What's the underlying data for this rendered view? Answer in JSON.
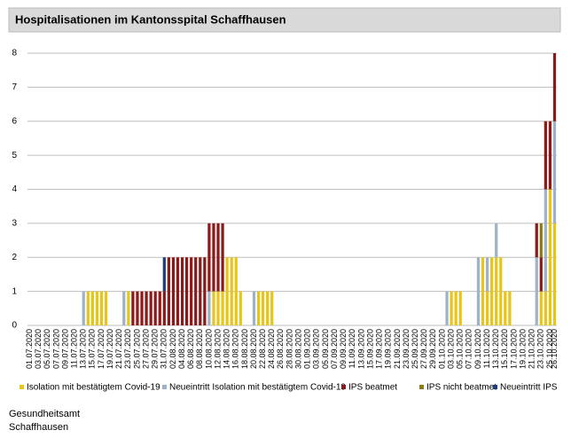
{
  "chart_data": {
    "type": "stacked_bar",
    "title": "Hospitalisationen im Kantonsspital Schaffhausen",
    "categories": [
      "01.07.2020",
      null,
      "03.07.2020",
      null,
      "05.07.2020",
      null,
      "07.07.2020",
      null,
      "09.07.2020",
      null,
      "11.07.2020",
      null,
      "13.07.2020",
      null,
      "15.07.2020",
      null,
      "17.07.2020",
      null,
      "19.07.2020",
      null,
      "21.07.2020",
      null,
      "23.07.2020",
      null,
      "25.07.2020",
      null,
      "27.07.2020",
      null,
      "29.07.2020",
      null,
      "31.07.2020",
      null,
      "02.08.2020",
      null,
      "04.08.2020",
      null,
      "06.08.2020",
      null,
      "08.08.2020",
      null,
      "10.08.2020",
      null,
      "12.08.2020",
      null,
      "14.08.2020",
      null,
      "16.08.2020",
      null,
      "18.08.2020",
      null,
      "20.08.2020",
      null,
      "22.08.2020",
      null,
      "24.08.2020",
      null,
      "26.08.2020",
      null,
      "28.08.2020",
      null,
      "30.08.2020",
      null,
      "01.09.2020",
      null,
      "03.09.2020",
      null,
      "05.09.2020",
      null,
      "07.09.2020",
      null,
      "09.09.2020",
      null,
      "11.09.2020",
      null,
      "13.09.2020",
      null,
      "15.09.2020",
      null,
      "17.09.2020",
      null,
      "19.09.2020",
      null,
      "21.09.2020",
      null,
      "23.09.2020",
      null,
      "25.09.2020",
      null,
      "27.09.2020",
      null,
      "29.09.2020",
      null,
      "01.10.2020",
      null,
      "03.10.2020",
      null,
      "05.10.2020",
      null,
      "07.10.2020",
      null,
      "09.10.2020",
      null,
      "11.10.2020",
      null,
      "13.10.2020",
      null,
      "15.10.2020",
      null,
      "17.10.2020",
      null,
      "19.10.2020",
      null,
      "21.10.2020",
      null,
      "23.10.2020",
      null,
      "25.10.2020",
      "26.10.2020"
    ],
    "series": [
      {
        "name": "Isolation mit bestätigtem Covid-19",
        "color": "#e8c619",
        "values": [
          0,
          0,
          0,
          0,
          0,
          0,
          0,
          0,
          0,
          0,
          0,
          0,
          0,
          1,
          1,
          1,
          1,
          1,
          0,
          0,
          0,
          0,
          1,
          0,
          0,
          0,
          0,
          0,
          0,
          0,
          0,
          0,
          0,
          0,
          0,
          0,
          0,
          0,
          0,
          0,
          0,
          1,
          1,
          1,
          2,
          2,
          2,
          1,
          0,
          0,
          0,
          1,
          1,
          1,
          1,
          0,
          0,
          0,
          0,
          0,
          0,
          0,
          0,
          0,
          0,
          0,
          0,
          0,
          0,
          0,
          0,
          0,
          0,
          0,
          0,
          0,
          0,
          0,
          0,
          0,
          0,
          0,
          0,
          0,
          0,
          0,
          0,
          0,
          0,
          0,
          0,
          0,
          0,
          0,
          1,
          1,
          1,
          0,
          0,
          0,
          0,
          2,
          1,
          2,
          2,
          2,
          1,
          1,
          0,
          0,
          0,
          0,
          0,
          0,
          1,
          1,
          4,
          3
        ]
      },
      {
        "name": "Neueintritt Isolation mit bestätigtem Covid-19",
        "color": "#9fb3c8",
        "values": [
          0,
          0,
          0,
          0,
          0,
          0,
          0,
          0,
          0,
          0,
          0,
          0,
          1,
          0,
          0,
          0,
          0,
          0,
          0,
          0,
          0,
          1,
          0,
          0,
          0,
          0,
          0,
          0,
          0,
          0,
          0,
          0,
          0,
          0,
          0,
          0,
          0,
          0,
          0,
          0,
          1,
          0,
          0,
          0,
          0,
          0,
          0,
          0,
          0,
          0,
          1,
          0,
          0,
          0,
          0,
          0,
          0,
          0,
          0,
          0,
          0,
          0,
          0,
          0,
          0,
          0,
          0,
          0,
          0,
          0,
          0,
          0,
          0,
          0,
          0,
          0,
          0,
          0,
          0,
          0,
          0,
          0,
          0,
          0,
          0,
          0,
          0,
          0,
          0,
          0,
          0,
          0,
          0,
          1,
          0,
          0,
          0,
          0,
          0,
          0,
          2,
          0,
          1,
          0,
          1,
          0,
          0,
          0,
          0,
          0,
          0,
          0,
          0,
          2,
          0,
          3,
          0,
          3
        ]
      },
      {
        "name": "IPS beatmet",
        "color": "#8b1a1a",
        "values": [
          0,
          0,
          0,
          0,
          0,
          0,
          0,
          0,
          0,
          0,
          0,
          0,
          0,
          0,
          0,
          0,
          0,
          0,
          0,
          0,
          0,
          0,
          0,
          1,
          1,
          1,
          1,
          1,
          1,
          1,
          1,
          2,
          2,
          2,
          2,
          2,
          2,
          2,
          2,
          2,
          2,
          2,
          2,
          2,
          0,
          0,
          0,
          0,
          0,
          0,
          0,
          0,
          0,
          0,
          0,
          0,
          0,
          0,
          0,
          0,
          0,
          0,
          0,
          0,
          0,
          0,
          0,
          0,
          0,
          0,
          0,
          0,
          0,
          0,
          0,
          0,
          0,
          0,
          0,
          0,
          0,
          0,
          0,
          0,
          0,
          0,
          0,
          0,
          0,
          0,
          0,
          0,
          0,
          0,
          0,
          0,
          0,
          0,
          0,
          0,
          0,
          0,
          0,
          0,
          0,
          0,
          0,
          0,
          0,
          0,
          0,
          0,
          0,
          1,
          1,
          2,
          2,
          2
        ]
      },
      {
        "name": "IPS nicht beatmet",
        "color": "#8c7a12",
        "values": [
          0,
          0,
          0,
          0,
          0,
          0,
          0,
          0,
          0,
          0,
          0,
          0,
          0,
          0,
          0,
          0,
          0,
          0,
          0,
          0,
          0,
          0,
          0,
          0,
          0,
          0,
          0,
          0,
          0,
          0,
          0,
          0,
          0,
          0,
          0,
          0,
          0,
          0,
          0,
          0,
          0,
          0,
          0,
          0,
          0,
          0,
          0,
          0,
          0,
          0,
          0,
          0,
          0,
          0,
          0,
          0,
          0,
          0,
          0,
          0,
          0,
          0,
          0,
          0,
          0,
          0,
          0,
          0,
          0,
          0,
          0,
          0,
          0,
          0,
          0,
          0,
          0,
          0,
          0,
          0,
          0,
          0,
          0,
          0,
          0,
          0,
          0,
          0,
          0,
          0,
          0,
          0,
          0,
          0,
          0,
          0,
          0,
          0,
          0,
          0,
          0,
          0,
          0,
          0,
          0,
          0,
          0,
          0,
          0,
          0,
          0,
          0,
          0,
          0,
          1,
          0,
          0,
          0
        ]
      },
      {
        "name": "Neueintritt IPS",
        "color": "#1f3d7a",
        "values": [
          0,
          0,
          0,
          0,
          0,
          0,
          0,
          0,
          0,
          0,
          0,
          0,
          0,
          0,
          0,
          0,
          0,
          0,
          0,
          0,
          0,
          0,
          0,
          0,
          0,
          0,
          0,
          0,
          0,
          0,
          1,
          0,
          0,
          0,
          0,
          0,
          0,
          0,
          0,
          0,
          0,
          0,
          0,
          0,
          0,
          0,
          0,
          0,
          0,
          0,
          0,
          0,
          0,
          0,
          0,
          0,
          0,
          0,
          0,
          0,
          0,
          0,
          0,
          0,
          0,
          0,
          0,
          0,
          0,
          0,
          0,
          0,
          0,
          0,
          0,
          0,
          0,
          0,
          0,
          0,
          0,
          0,
          0,
          0,
          0,
          0,
          0,
          0,
          0,
          0,
          0,
          0,
          0,
          0,
          0,
          0,
          0,
          0,
          0,
          0,
          0,
          0,
          0,
          0,
          0,
          0,
          0,
          0,
          0,
          0,
          0,
          0,
          0,
          0,
          0,
          0,
          0,
          0
        ]
      }
    ],
    "ylim": [
      0,
      8
    ],
    "yticks": [
      0,
      1,
      2,
      3,
      4,
      5,
      6,
      7,
      8
    ],
    "grid": true
  },
  "footer": {
    "line1": "Gesundheitsamt",
    "line2": "Schaffhausen"
  }
}
